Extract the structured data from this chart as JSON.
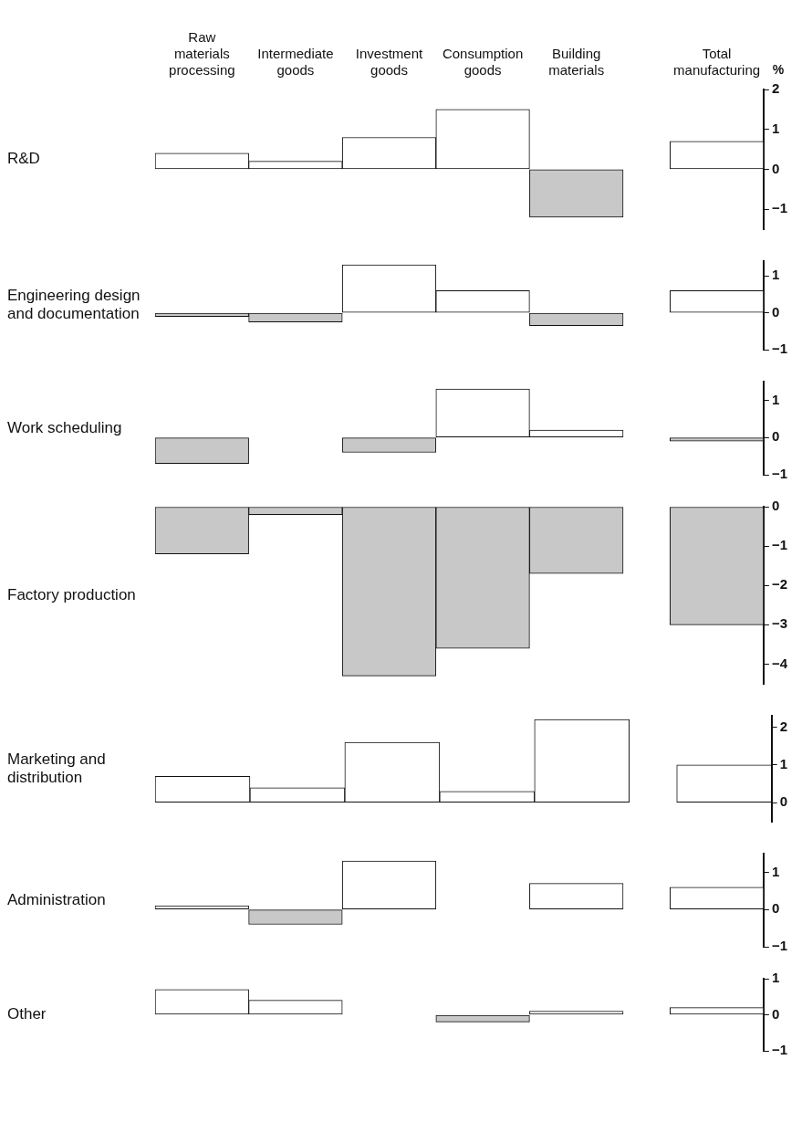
{
  "chart_data": [
    {
      "type": "bar",
      "ylabel": "R&D",
      "annotations": [
        "%"
      ],
      "categories": [
        "Raw materials processing",
        "Intermediate goods",
        "Investment goods",
        "Consumption goods",
        "Building materials",
        "Total manufacturing"
      ],
      "values": [
        0.4,
        0.2,
        0.8,
        1.5,
        -1.2,
        0.7
      ],
      "colors": [
        "#ffffff",
        "#ffffff",
        "#ffffff",
        "#ffffff",
        "#c8c8c8",
        "#ffffff"
      ],
      "ylim": [
        -1.5,
        2
      ],
      "yticks": [
        -1,
        0,
        1,
        2
      ]
    },
    {
      "type": "bar",
      "ylabel": "Engineering design and documentation",
      "categories": [
        null,
        null,
        null,
        null,
        null,
        null
      ],
      "values": [
        -0.1,
        -0.25,
        1.3,
        0.6,
        -0.35,
        0.6
      ],
      "colors": [
        "#c8c8c8",
        "#c8c8c8",
        "#ffffff",
        "#ffffff",
        "#c8c8c8",
        "#ffffff"
      ],
      "ylim": [
        -1,
        1.4
      ],
      "yticks": [
        -1,
        0,
        1
      ]
    },
    {
      "type": "bar",
      "ylabel": "Work scheduling",
      "categories": [
        null,
        null,
        null,
        null,
        null,
        null
      ],
      "values": [
        -0.7,
        0,
        -0.4,
        1.3,
        0.2,
        -0.1
      ],
      "colors": [
        "#c8c8c8",
        "#ffffff",
        "#c8c8c8",
        "#ffffff",
        "#ffffff",
        "#c8c8c8"
      ],
      "ylim": [
        -1,
        1.5
      ],
      "yticks": [
        -1,
        0,
        1
      ]
    },
    {
      "type": "bar",
      "ylabel": "Factory production",
      "categories": [
        null,
        null,
        null,
        null,
        null,
        null
      ],
      "values": [
        -1.2,
        -0.2,
        -4.3,
        -3.6,
        -1.7,
        -3
      ],
      "colors": [
        "#c8c8c8",
        "#c8c8c8",
        "#c8c8c8",
        "#c8c8c8",
        "#c8c8c8",
        "#c8c8c8"
      ],
      "ylim": [
        -4.5,
        0
      ],
      "yticks": [
        -4,
        -3,
        -2,
        -1,
        0
      ]
    },
    {
      "type": "bar",
      "ylabel": "Marketing and distribution",
      "categories": [
        null,
        null,
        null,
        null,
        null,
        null
      ],
      "values": [
        0.7,
        0.4,
        1.6,
        0.3,
        2.2,
        1
      ],
      "colors": [
        "#ffffff",
        "#ffffff",
        "#ffffff",
        "#ffffff",
        "#ffffff",
        "#ffffff"
      ],
      "ylim": [
        -0.5,
        2.3
      ],
      "yticks": [
        0,
        1,
        2
      ]
    },
    {
      "type": "bar",
      "ylabel": "Administration",
      "categories": [
        null,
        null,
        null,
        null,
        null,
        null
      ],
      "values": [
        0.1,
        -0.4,
        1.3,
        0,
        0.7,
        0.6
      ],
      "colors": [
        "#ffffff",
        "#c8c8c8",
        "#ffffff",
        "#ffffff",
        "#ffffff",
        "#ffffff"
      ],
      "ylim": [
        -1,
        1.5
      ],
      "yticks": [
        -1,
        0,
        1
      ]
    },
    {
      "type": "bar",
      "ylabel": "Other",
      "categories": [
        null,
        null,
        null,
        null,
        null,
        null
      ],
      "values": [
        0.7,
        0.4,
        0,
        -0.2,
        0.1,
        0.2
      ],
      "colors": [
        "#ffffff",
        "#ffffff",
        "#ffffff",
        "#c8c8c8",
        "#ffffff",
        "#ffffff"
      ],
      "ylim": [
        -1,
        1
      ],
      "yticks": [
        -1,
        0,
        1
      ]
    }
  ]
}
